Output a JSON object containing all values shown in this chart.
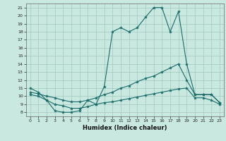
{
  "xlabel": "Humidex (Indice chaleur)",
  "xlim": [
    -0.5,
    23.5
  ],
  "ylim": [
    7.5,
    21.5
  ],
  "xticks": [
    0,
    1,
    2,
    3,
    4,
    5,
    6,
    7,
    8,
    9,
    10,
    11,
    12,
    13,
    14,
    15,
    16,
    17,
    18,
    19,
    20,
    21,
    22,
    23
  ],
  "yticks": [
    8,
    9,
    10,
    11,
    12,
    13,
    14,
    15,
    16,
    17,
    18,
    19,
    20,
    21
  ],
  "bg_color": "#c8e8e0",
  "line_color": "#1a6b6b",
  "grid_color": "#a0c8c0",
  "series": [
    {
      "x": [
        0,
        1,
        2,
        3,
        4,
        5,
        6,
        7,
        8,
        9,
        10,
        11,
        12,
        13,
        14,
        15,
        16,
        17,
        18,
        19,
        20,
        21,
        22,
        23
      ],
      "y": [
        11.0,
        10.5,
        9.5,
        8.2,
        8.0,
        8.0,
        8.2,
        9.5,
        9.0,
        11.2,
        18.0,
        18.5,
        18.0,
        18.5,
        19.8,
        21.0,
        21.0,
        18.0,
        20.5,
        14.0,
        10.2,
        10.2,
        10.2,
        9.2
      ]
    },
    {
      "x": [
        0,
        1,
        2,
        3,
        4,
        5,
        6,
        7,
        8,
        9,
        10,
        11,
        12,
        13,
        14,
        15,
        16,
        17,
        18,
        19,
        20,
        21,
        22,
        23
      ],
      "y": [
        10.5,
        10.3,
        10.0,
        9.8,
        9.5,
        9.3,
        9.3,
        9.5,
        9.8,
        10.2,
        10.5,
        11.0,
        11.3,
        11.8,
        12.2,
        12.5,
        13.0,
        13.5,
        14.0,
        12.0,
        10.2,
        10.2,
        10.2,
        9.2
      ]
    },
    {
      "x": [
        0,
        1,
        2,
        3,
        4,
        5,
        6,
        7,
        8,
        9,
        10,
        11,
        12,
        13,
        14,
        15,
        16,
        17,
        18,
        19,
        20,
        21,
        22,
        23
      ],
      "y": [
        10.2,
        10.0,
        9.5,
        9.0,
        8.8,
        8.5,
        8.5,
        8.7,
        9.0,
        9.2,
        9.3,
        9.5,
        9.7,
        9.9,
        10.1,
        10.3,
        10.5,
        10.7,
        10.9,
        11.0,
        9.8,
        9.8,
        9.5,
        9.0
      ]
    }
  ]
}
